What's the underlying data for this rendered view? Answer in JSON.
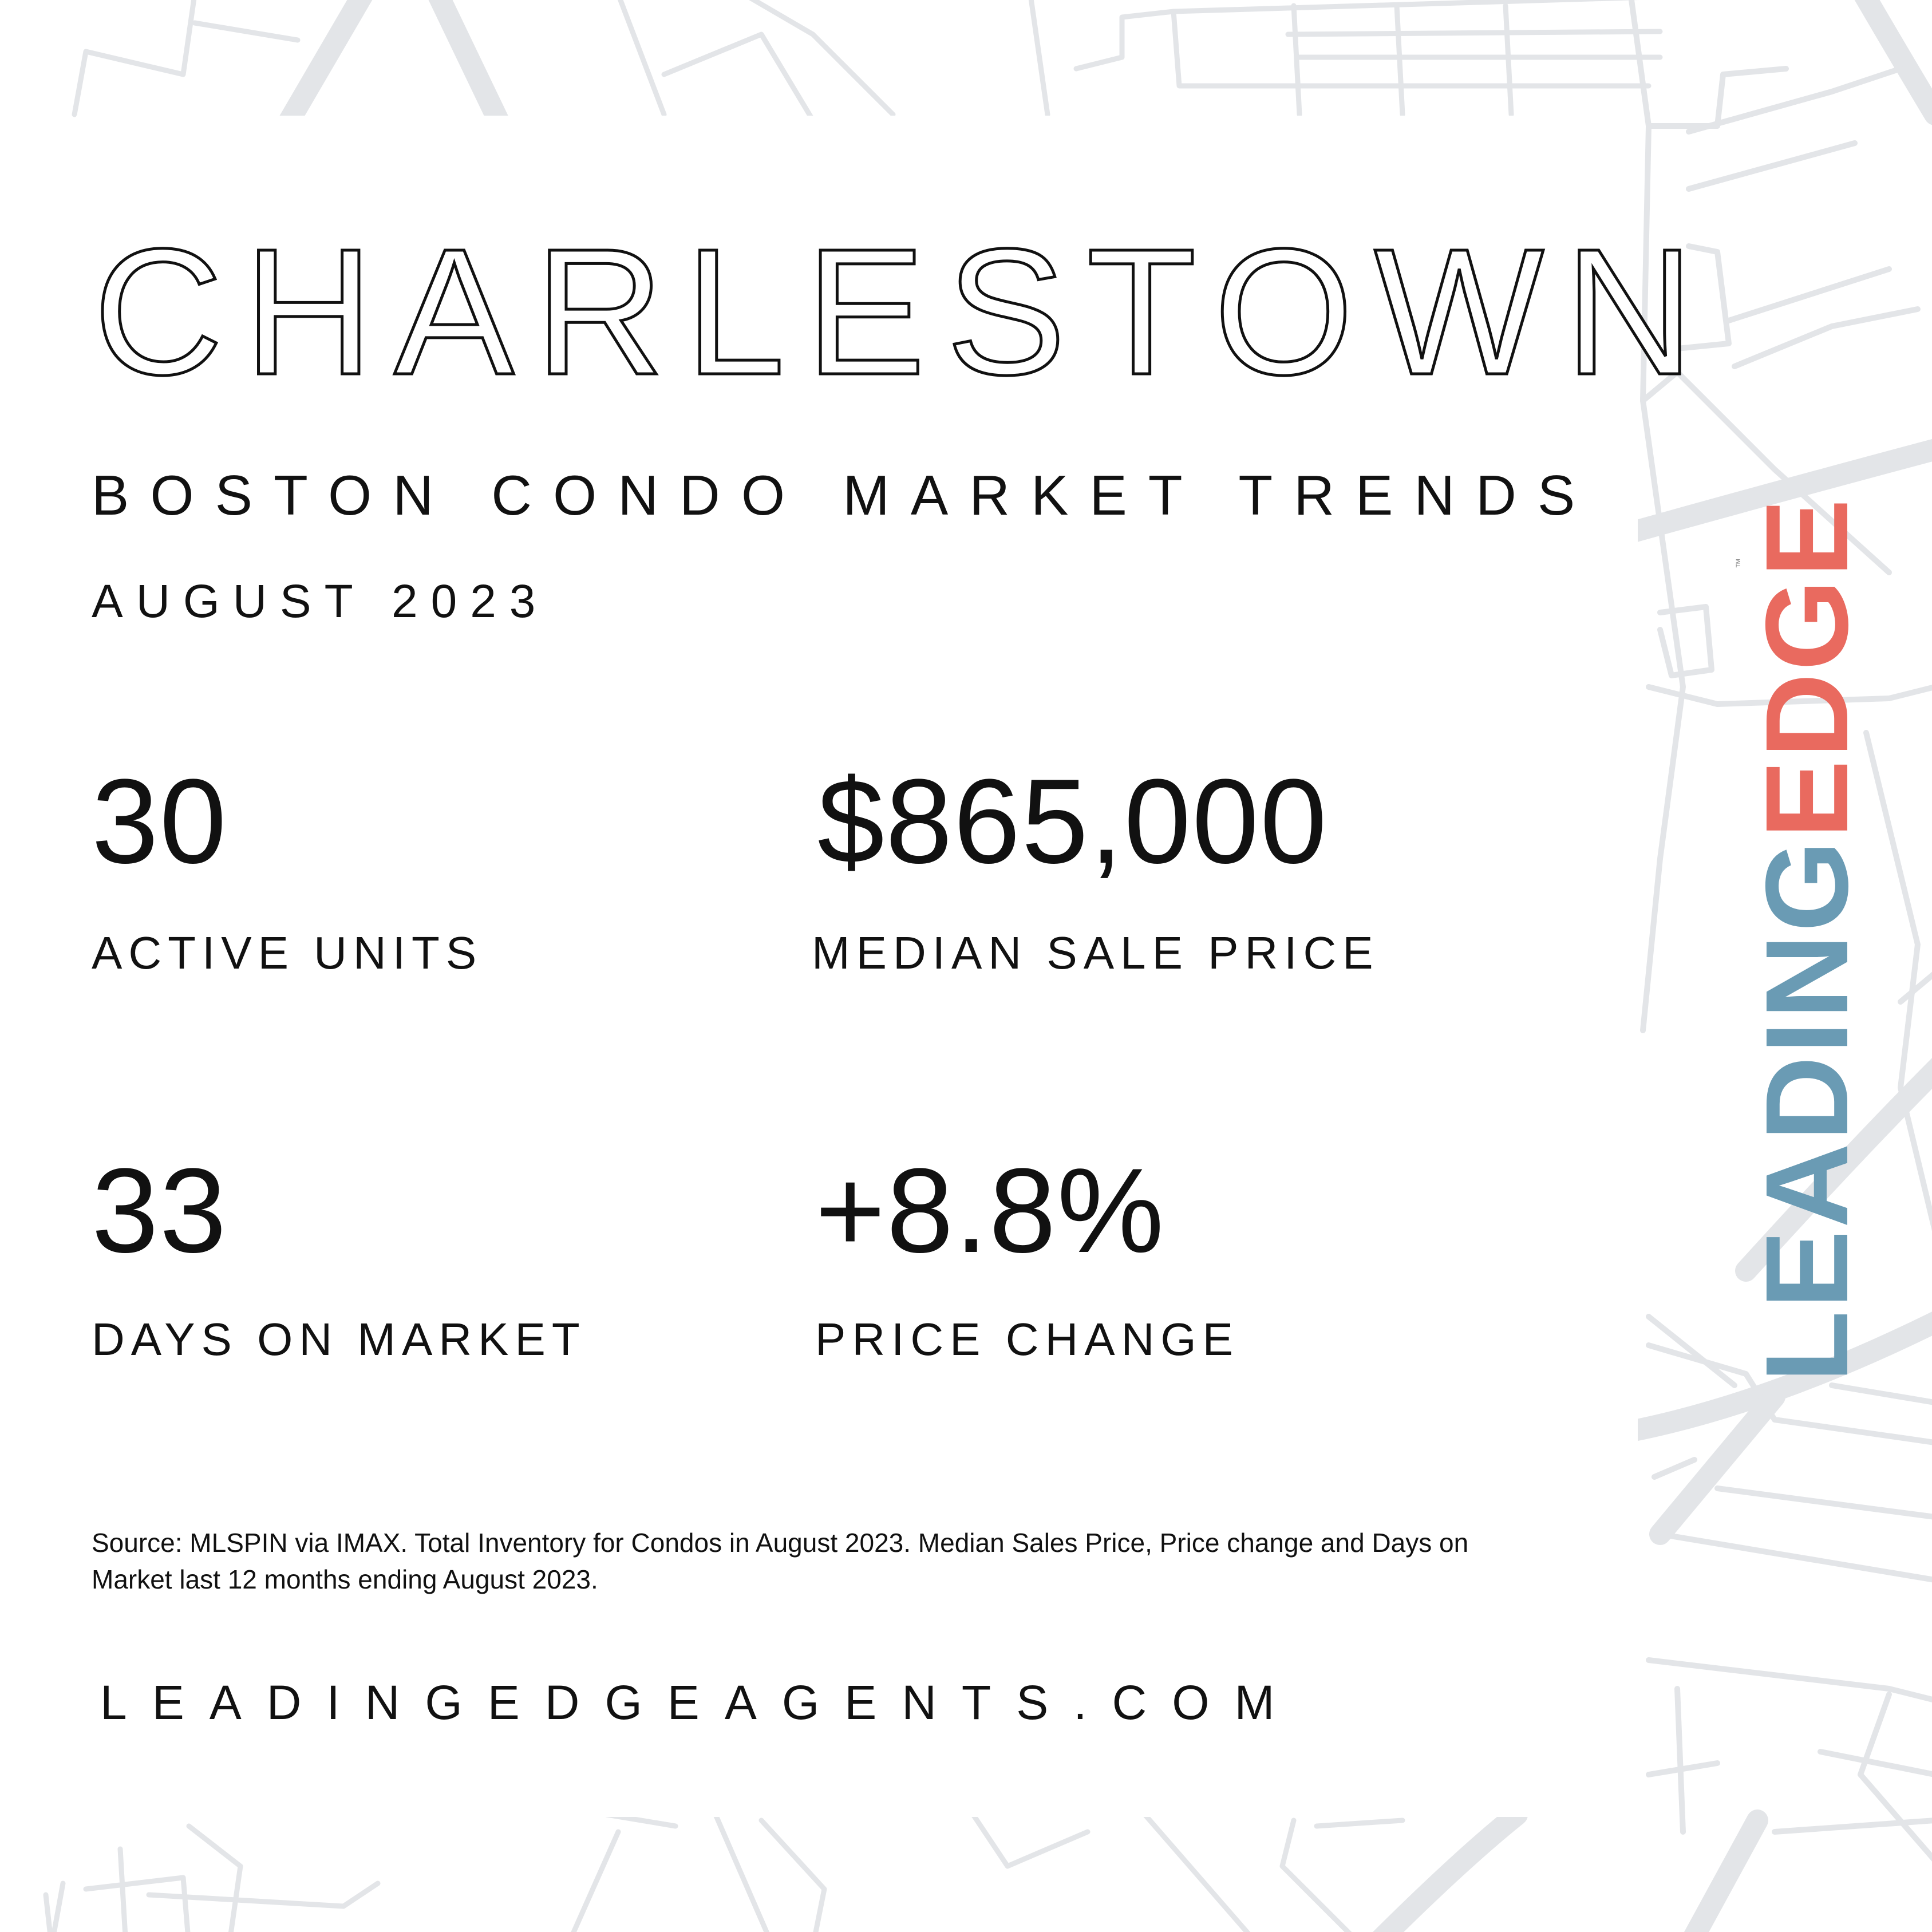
{
  "header": {
    "title": "CHARLESTOWN",
    "subtitle": "BOSTON CONDO MARKET TRENDS",
    "date": "AUGUST 2023"
  },
  "stats": {
    "active_units": {
      "value": "30",
      "label": "ACTIVE UNITS"
    },
    "median_sale_price": {
      "value": "$865,000",
      "label": "MEDIAN SALE PRICE"
    },
    "days_on_market": {
      "value": "33",
      "label": "DAYS ON MARKET"
    },
    "price_change": {
      "value": "+8.8%",
      "label": "PRICE CHANGE"
    }
  },
  "footer": {
    "source": "Source: MLSPIN via IMAX. Total Inventory for Condos in August 2023. Median Sales Price, Price change and Days on Market last 12 months ending August 2023.",
    "website": "LEADINGEDGEAGENTS.COM"
  },
  "logo": {
    "part1": "LEADING",
    "part2": "EDGE",
    "trademark": "™",
    "colors": {
      "leading": "#6a9bb4",
      "edge": "#e96a5f"
    }
  },
  "background": {
    "style": "street-map",
    "line_color": "#e3e5e8"
  }
}
